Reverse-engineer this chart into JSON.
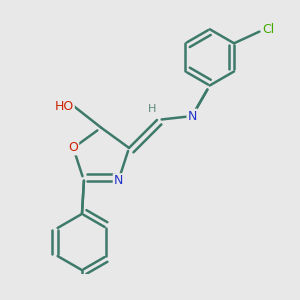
{
  "background_color": "#e8e8e8",
  "bond_color": "#3d7a6a",
  "bond_width": 1.8,
  "atom_colors": {
    "O": "#cc2200",
    "N": "#2233cc",
    "Cl": "#44aa00",
    "C": "#3d7a6a",
    "H": "#5a8a7a"
  },
  "font_size": 9,
  "figsize": [
    3.0,
    3.0
  ],
  "dpi": 100
}
